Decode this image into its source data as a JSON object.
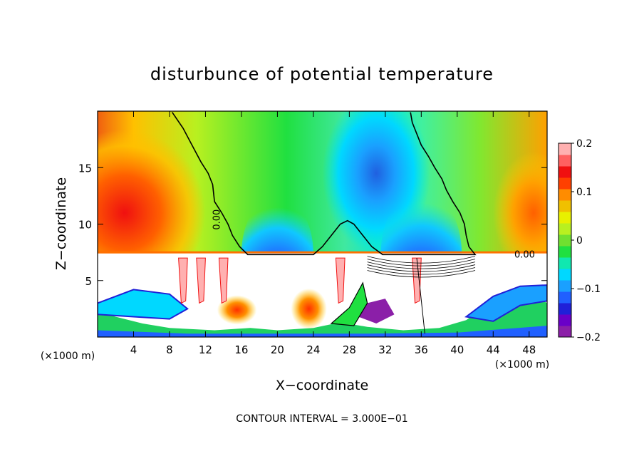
{
  "chart_data": {
    "type": "heatmap",
    "title": "disturbunce of potential temperature",
    "xlabel": "X−coordinate",
    "ylabel": "Z−coordinate",
    "x_unit_label": "(×1000 m)",
    "y_unit_label": "(×1000 m)",
    "footer": "CONTOUR INTERVAL = 3.000E−01",
    "xlim": [
      0,
      50
    ],
    "ylim": [
      0,
      20
    ],
    "x_ticks": [
      4,
      8,
      12,
      16,
      20,
      24,
      28,
      32,
      36,
      40,
      44,
      48
    ],
    "x_tick_labels": [
      "4",
      "8",
      "12",
      "16",
      "20",
      "24",
      "28",
      "32",
      "36",
      "40",
      "44",
      "48"
    ],
    "y_ticks": [
      5,
      10,
      15
    ],
    "y_tick_labels": [
      "5",
      "10",
      "15"
    ],
    "colorbar": {
      "range": [
        -0.2,
        0.2
      ],
      "tick_values": [
        0.2,
        0.1,
        0,
        -0.1,
        -0.2
      ],
      "tick_labels": [
        "0.2",
        "0.1",
        "0",
        "−0.1",
        "−0.2"
      ],
      "colors": [
        "#8b1fa8",
        "#6a00c8",
        "#2020d8",
        "#2060ff",
        "#1aa0ff",
        "#00d8ff",
        "#10e8b0",
        "#20e040",
        "#70e030",
        "#b8f020",
        "#e8f000",
        "#f0c000",
        "#ff8c00",
        "#ff4000",
        "#f01010",
        "#ff6060",
        "#ffb0b0"
      ]
    },
    "contour_labels": [
      "0.00",
      "0.00"
    ],
    "zero_contour_upper": [
      [
        8.3,
        19.9
      ],
      [
        9.5,
        18.5
      ],
      [
        10.5,
        17.0
      ],
      [
        11.5,
        15.5
      ],
      [
        12.3,
        14.5
      ],
      [
        12.8,
        13.5
      ],
      [
        13.0,
        12.0
      ],
      [
        13.8,
        11.0
      ],
      [
        14.5,
        10.0
      ],
      [
        15.0,
        9.0
      ],
      [
        15.8,
        8.0
      ],
      [
        16.7,
        7.3
      ],
      [
        24.0,
        7.3
      ],
      [
        25.0,
        8.0
      ],
      [
        26.0,
        9.0
      ],
      [
        27.0,
        10.0
      ],
      [
        27.8,
        10.3
      ],
      [
        28.5,
        10.0
      ],
      [
        29.5,
        9.0
      ],
      [
        30.5,
        8.0
      ],
      [
        31.7,
        7.3
      ],
      [
        42.0,
        7.3
      ],
      [
        41.3,
        8.0
      ],
      [
        41.0,
        9.0
      ],
      [
        40.8,
        10.0
      ],
      [
        40.3,
        11.0
      ],
      [
        39.5,
        12.0
      ],
      [
        38.8,
        13.0
      ],
      [
        38.3,
        14.0
      ],
      [
        37.5,
        15.0
      ],
      [
        36.8,
        16.0
      ],
      [
        36.0,
        17.0
      ],
      [
        35.5,
        18.0
      ],
      [
        35.0,
        19.0
      ],
      [
        34.8,
        19.9
      ]
    ],
    "regions": [
      {
        "x": [
          0,
          50
        ],
        "y": [
          7.5,
          20
        ],
        "value": 0.03
      },
      {
        "x": [
          0,
          11
        ],
        "y": [
          7.6,
          19
        ],
        "value": 0.12
      },
      {
        "x": [
          0,
          6
        ],
        "y": [
          8,
          14
        ],
        "value": 0.16
      },
      {
        "x": [
          46,
          50
        ],
        "y": [
          8,
          16
        ],
        "value": 0.13
      },
      {
        "x": [
          26,
          37
        ],
        "y": [
          10,
          19.5
        ],
        "value": -0.08
      },
      {
        "x": [
          29.5,
          33
        ],
        "y": [
          13,
          18
        ],
        "value": -0.14
      },
      {
        "x": [
          17,
          23
        ],
        "y": [
          7.3,
          12
        ],
        "value": -0.1
      },
      {
        "x": [
          19,
          21
        ],
        "y": [
          7.3,
          10
        ],
        "value": -0.17
      },
      {
        "x": [
          33,
          39
        ],
        "y": [
          7.3,
          12
        ],
        "value": -0.1
      },
      {
        "x": [
          35,
          37.5
        ],
        "y": [
          7.3,
          10
        ],
        "value": -0.17
      },
      {
        "x": [
          13,
          18
        ],
        "y": [
          1.5,
          3.5
        ],
        "value": 0.12
      },
      {
        "x": [
          22,
          25
        ],
        "y": [
          1.5,
          4
        ],
        "value": 0.15
      }
    ]
  }
}
